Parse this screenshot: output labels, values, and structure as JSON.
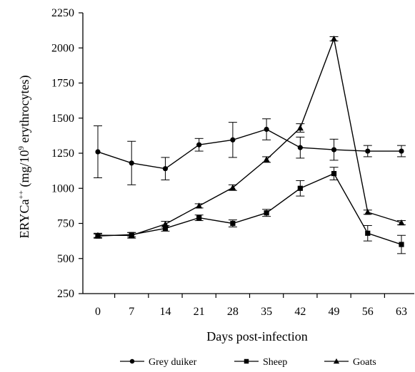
{
  "chart_data": {
    "type": "line",
    "xlabel": "Days post-infection",
    "ylabel": {
      "base": "ERYCa",
      "base_sup": "++",
      "unit_open": " (mg/10",
      "unit_sup": "9",
      "unit_close": " erythrocytes)"
    },
    "x": [
      0,
      7,
      14,
      21,
      28,
      35,
      42,
      49,
      56,
      63
    ],
    "x_tick_labels": [
      "0",
      "7",
      "14",
      "21",
      "28",
      "35",
      "42",
      "49",
      "56",
      "63"
    ],
    "ylim": [
      250,
      2250
    ],
    "y_ticks": [
      250,
      500,
      750,
      1000,
      1250,
      1500,
      1750,
      2000,
      2250
    ],
    "y_tick_labels": [
      "250",
      "500",
      "750",
      "1000",
      "1250",
      "1500",
      "1750",
      "2000",
      "2250"
    ],
    "grid": false,
    "legend_position": "bottom",
    "series": [
      {
        "name": "Grey duiker",
        "marker": "circle",
        "values": [
          1260,
          1180,
          1140,
          1310,
          1345,
          1420,
          1290,
          1275,
          1265,
          1265
        ],
        "errors": [
          185,
          155,
          80,
          45,
          125,
          75,
          75,
          75,
          40,
          40
        ]
      },
      {
        "name": "Sheep",
        "marker": "square",
        "values": [
          660,
          670,
          715,
          790,
          750,
          825,
          1000,
          1105,
          680,
          600
        ],
        "errors": [
          15,
          15,
          20,
          20,
          25,
          25,
          55,
          45,
          55,
          65
        ]
      },
      {
        "name": "Goats",
        "marker": "triangle",
        "values": [
          665,
          665,
          745,
          875,
          1005,
          1205,
          1430,
          2065,
          830,
          755
        ],
        "errors": [
          15,
          20,
          20,
          15,
          20,
          20,
          30,
          15,
          15,
          15
        ]
      }
    ]
  }
}
